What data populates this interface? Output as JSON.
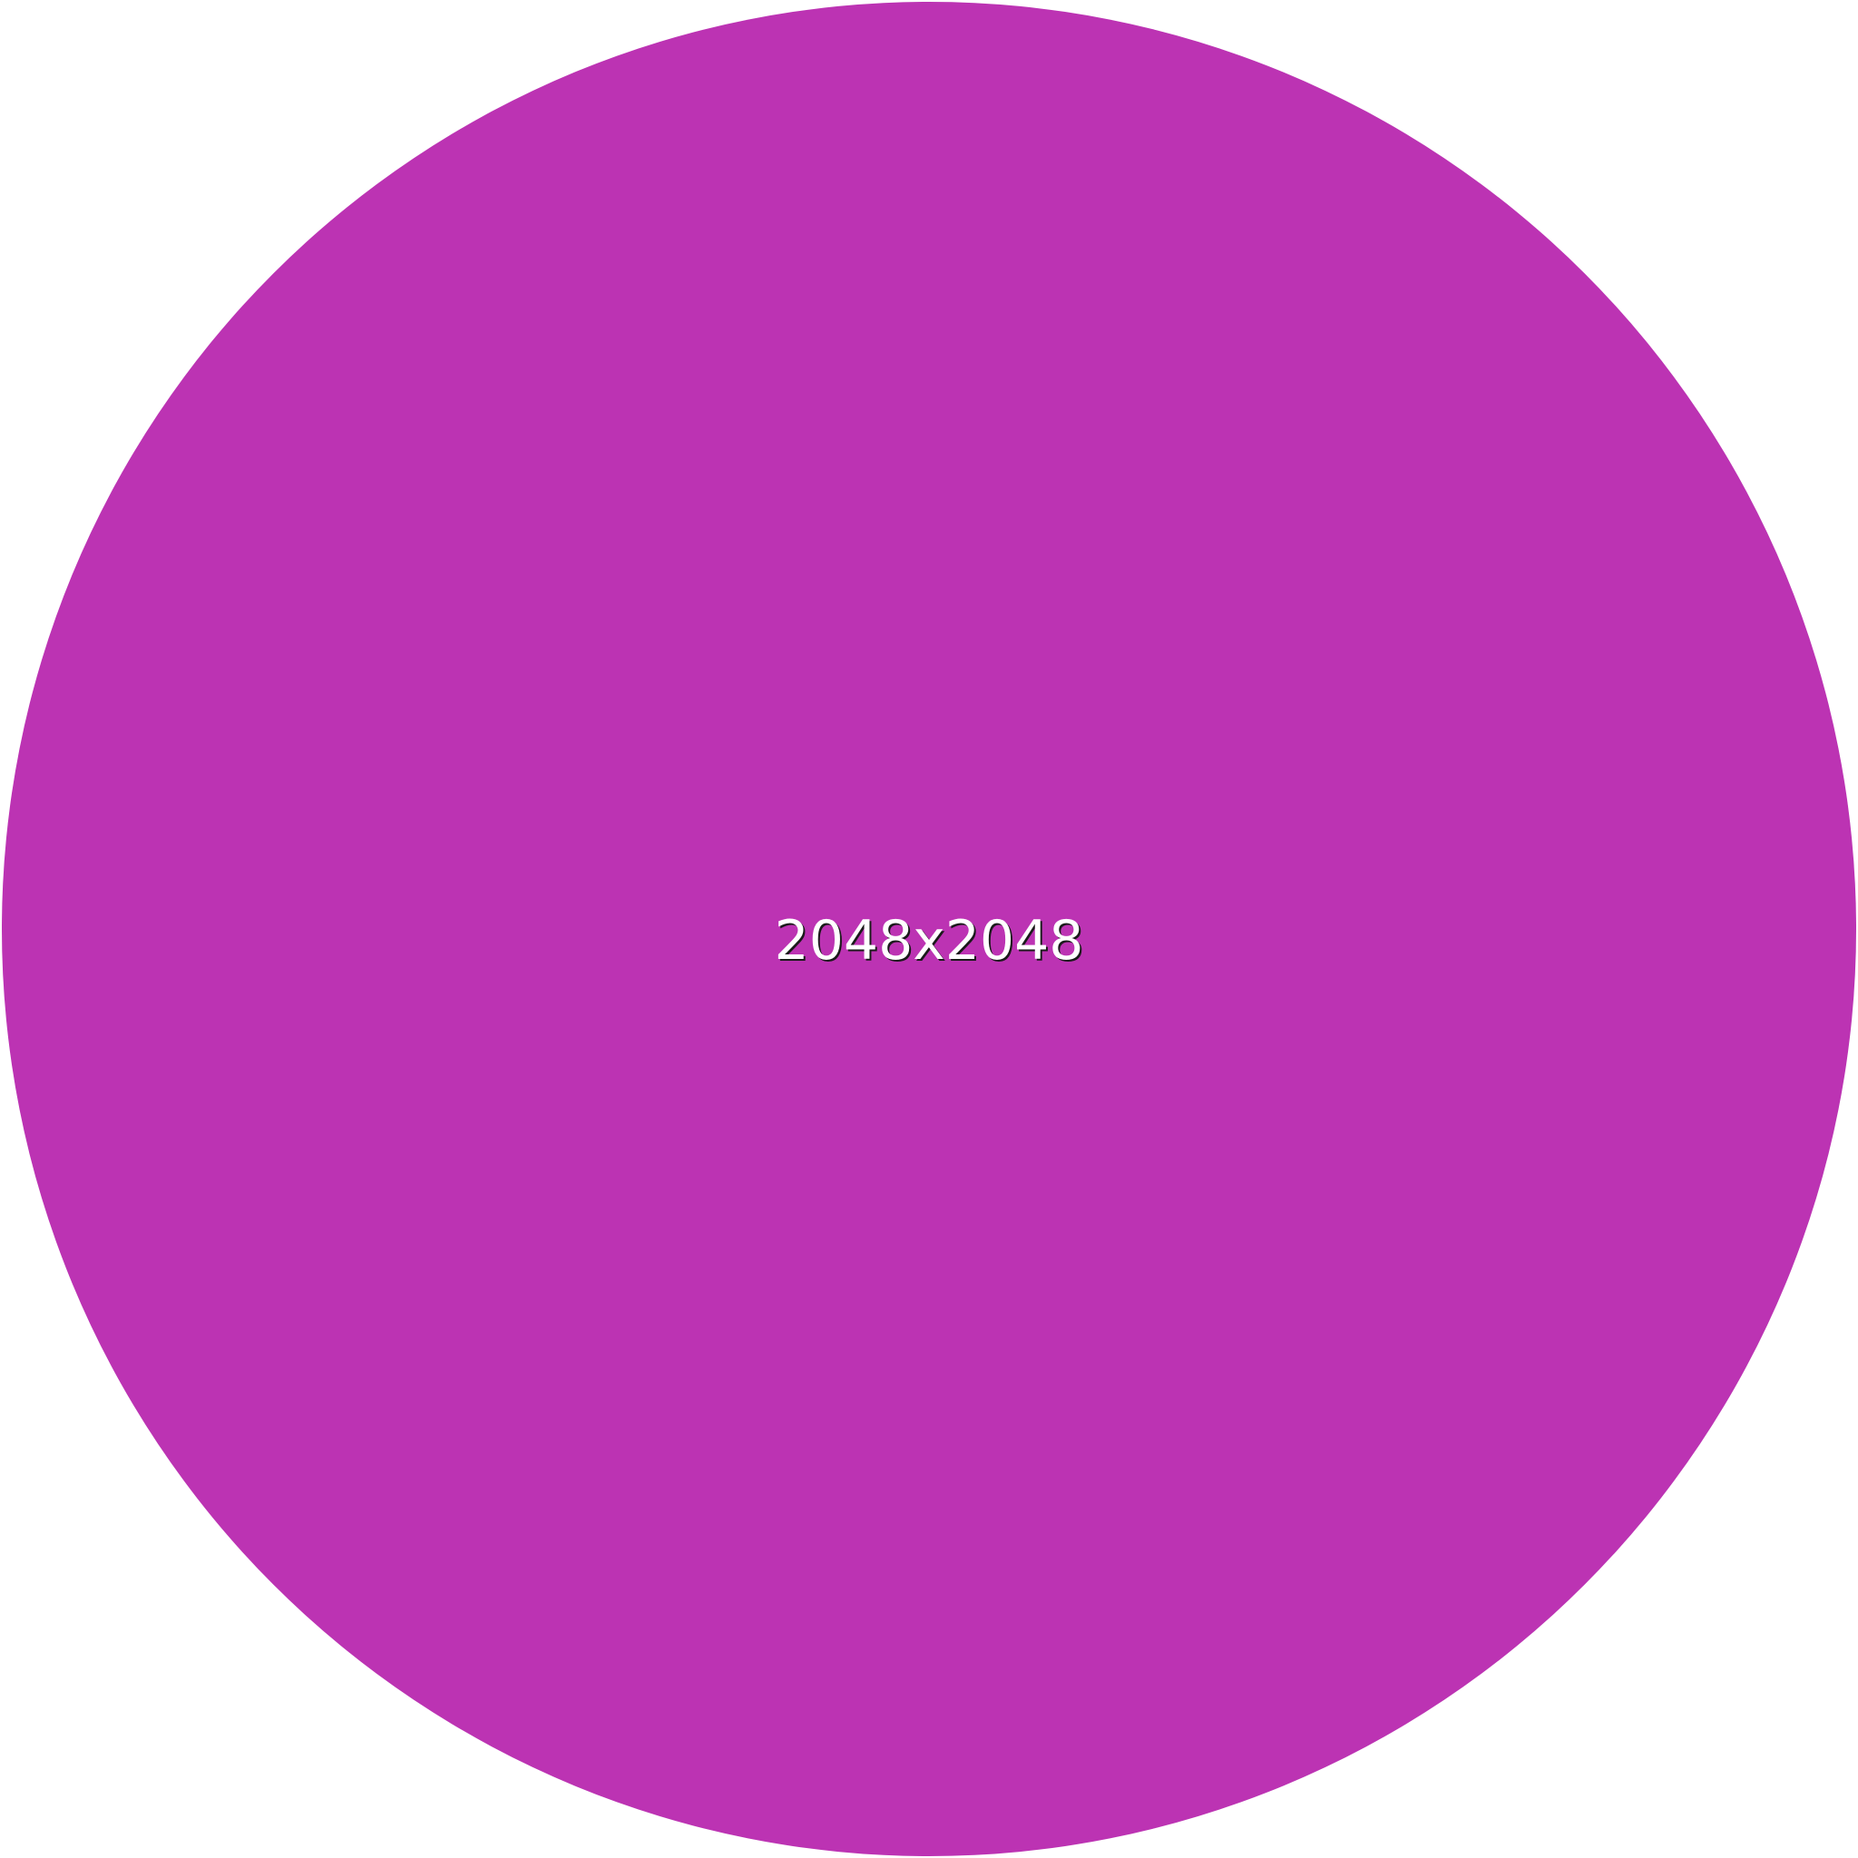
{
  "placeholder": {
    "label": "2048x2048",
    "fill_color": "#bc33b3",
    "text_color": "#ffffff",
    "shape": "circle"
  }
}
